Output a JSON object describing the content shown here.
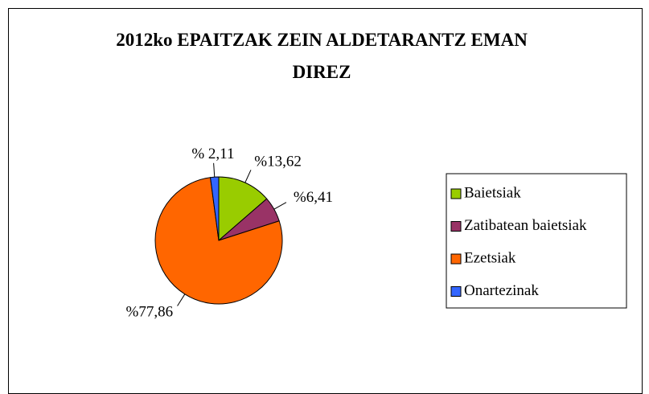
{
  "chart_data": {
    "type": "pie",
    "title": "2012ko EPAITZAK ZEIN ALDETARANTZ EMAN DIREZ",
    "categories": [
      "Baietsiak",
      "Zatibatean baietsiak",
      "Ezetsiak",
      "Onartezinak"
    ],
    "values": [
      13.62,
      6.41,
      77.86,
      2.11
    ],
    "value_labels": [
      "%13,62",
      "%6,41",
      "%77,86",
      "% 2,11"
    ],
    "colors": [
      "#99cc00",
      "#993366",
      "#ff6600",
      "#3366ff"
    ],
    "legend": "right"
  }
}
